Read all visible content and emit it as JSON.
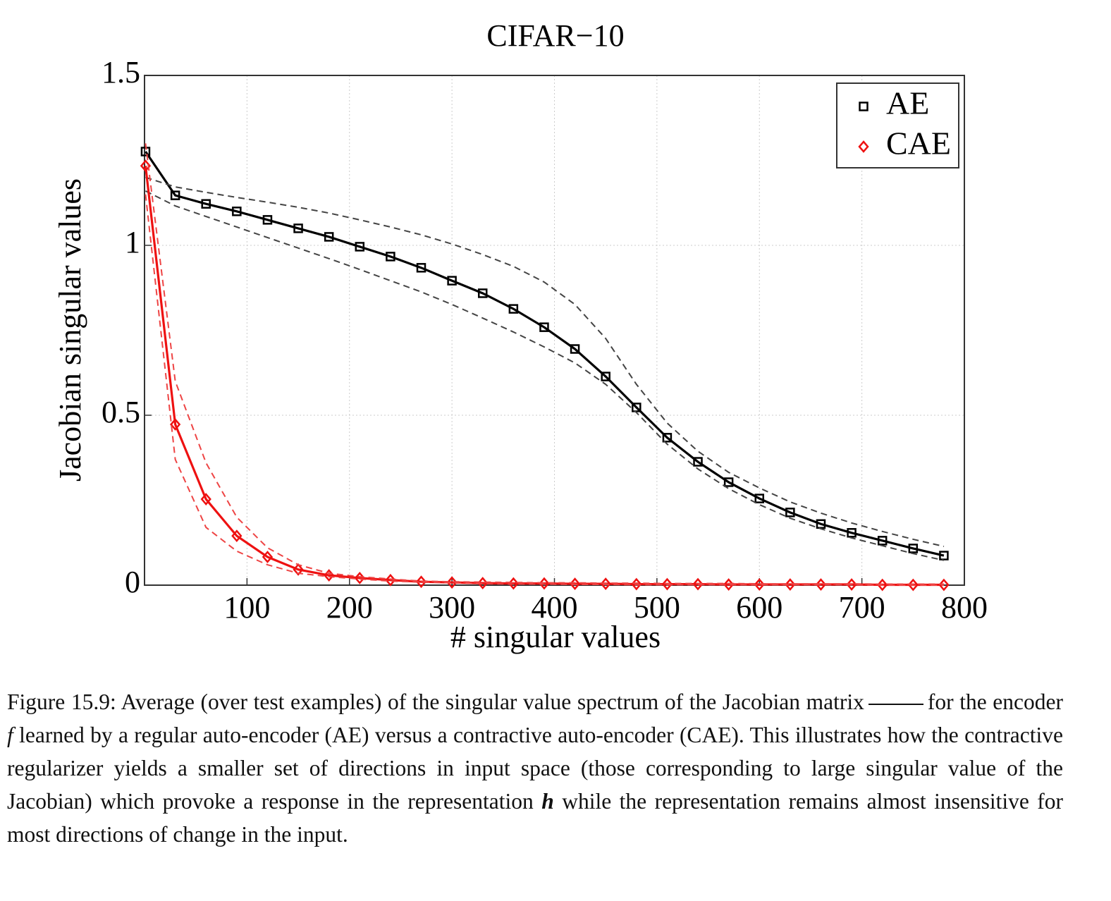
{
  "chart_data": {
    "type": "line",
    "title": "CIFAR−10",
    "x_label": "# singular values",
    "y_label": "Jacobian singular values",
    "xlim": [
      0,
      800
    ],
    "ylim": [
      0,
      1.5
    ],
    "xticks": [
      100,
      200,
      300,
      400,
      500,
      600,
      700,
      800
    ],
    "yticks": [
      0,
      0.5,
      1,
      1.5
    ],
    "grid": true,
    "legend": "upper right",
    "x": [
      1,
      30,
      60,
      90,
      120,
      150,
      180,
      210,
      240,
      270,
      300,
      330,
      360,
      390,
      420,
      450,
      480,
      510,
      540,
      570,
      600,
      630,
      660,
      690,
      720,
      750,
      780
    ],
    "series": [
      {
        "name": "AE",
        "color": "#000000",
        "marker": "square",
        "style": "solid",
        "values": [
          1.276,
          1.147,
          1.122,
          1.1,
          1.075,
          1.05,
          1.025,
          0.996,
          0.967,
          0.934,
          0.896,
          0.859,
          0.813,
          0.759,
          0.695,
          0.614,
          0.523,
          0.434,
          0.363,
          0.303,
          0.255,
          0.214,
          0.18,
          0.154,
          0.131,
          0.108,
          0.087
        ]
      },
      {
        "color": "#444444",
        "marker": "none",
        "style": "dashed",
        "values": [
          1.2,
          1.172,
          1.156,
          1.141,
          1.127,
          1.112,
          1.095,
          1.075,
          1.054,
          1.031,
          1.004,
          0.973,
          0.938,
          0.892,
          0.826,
          0.726,
          0.591,
          0.477,
          0.394,
          0.332,
          0.286,
          0.245,
          0.212,
          0.183,
          0.158,
          0.135,
          0.114
        ]
      },
      {
        "color": "#444444",
        "marker": "none",
        "style": "dashed",
        "values": [
          1.16,
          1.116,
          1.085,
          1.054,
          1.023,
          0.992,
          0.961,
          0.929,
          0.896,
          0.863,
          0.826,
          0.786,
          0.745,
          0.701,
          0.654,
          0.591,
          0.508,
          0.415,
          0.342,
          0.284,
          0.237,
          0.197,
          0.166,
          0.139,
          0.116,
          0.093,
          0.073
        ]
      },
      {
        "name": "CAE",
        "color": "#ee1111",
        "marker": "diamond",
        "style": "solid",
        "values": [
          1.234,
          0.473,
          0.253,
          0.145,
          0.083,
          0.046,
          0.029,
          0.021,
          0.015,
          0.01,
          0.008,
          0.006,
          0.005,
          0.005,
          0.004,
          0.004,
          0.003,
          0.003,
          0.003,
          0.002,
          0.002,
          0.002,
          0.002,
          0.002,
          0.001,
          0.001,
          0.001
        ]
      },
      {
        "color": "#ee4444",
        "marker": "none",
        "style": "dashed",
        "values": [
          1.3,
          0.6,
          0.36,
          0.2,
          0.11,
          0.06,
          0.035,
          0.025,
          0.018,
          0.012,
          0.01,
          0.009,
          0.008,
          0.007,
          0.007,
          0.006,
          0.006,
          0.005,
          0.005,
          0.005,
          0.004,
          0.004,
          0.004,
          0.004,
          0.003,
          0.003,
          0.003
        ]
      },
      {
        "color": "#ee4444",
        "marker": "none",
        "style": "dashed",
        "values": [
          1.15,
          0.37,
          0.17,
          0.1,
          0.06,
          0.035,
          0.025,
          0.018,
          0.012,
          0.009,
          0.007,
          0.004,
          0.003,
          0.003,
          0.002,
          0.002,
          0.001,
          0.001,
          0.001,
          0.001,
          0.001,
          0.001,
          0.001,
          0.001,
          0.0,
          0.0,
          0.0
        ]
      }
    ]
  },
  "caption": {
    "parts": [
      "Figure 15.9:  Average (over test examples) of the singular value spectrum of the Jacobian matrix",
      "for the encoder",
      "f",
      "learned by a regular auto-encoder (AE) versus a contractive auto-encoder (CAE). This illustrates how the contractive regularizer yields a smaller set of directions in input space (those corresponding to large singular value of the Jacobian) which provoke a response in the representation",
      "h",
      "while the representation remains almost insensitive for most directions of change in the input."
    ]
  }
}
